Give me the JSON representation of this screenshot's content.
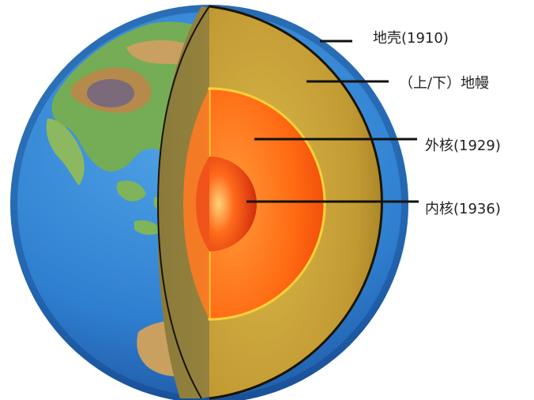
{
  "labels": {
    "crust": "地壳(1910)",
    "mantle": "（上/下）地幔",
    "outer_core": "外核(1929)",
    "inner_core": "内核(1936)"
  },
  "colors": {
    "ocean": "#2f7fd0",
    "land": "#6aa84f",
    "mountains": "#b58a4a",
    "crust": "#6e5a1e",
    "mantle": "#c9a53c",
    "outer_core": "#ff7a1a",
    "inner_core": "#e8300a",
    "leader_line": "#111111"
  }
}
